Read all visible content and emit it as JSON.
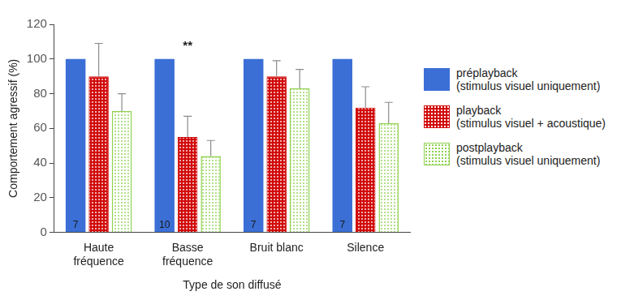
{
  "chart_data": {
    "type": "bar",
    "categories": [
      "Haute\nfréquence",
      "Basse\nfréquence",
      "Bruit blanc",
      "Silence"
    ],
    "x_label": "Type de son diffusé",
    "y_label": "Comportement agressif (%)",
    "ylim": [
      0,
      120
    ],
    "yticks": [
      0,
      20,
      40,
      60,
      80,
      100,
      120
    ],
    "grid": false,
    "legend": "right",
    "series": [
      {
        "name": "préplayback\n(stimulus visuel uniquement)",
        "color": "#3b6fd6",
        "values": [
          100,
          100,
          100,
          100
        ],
        "sample_sizes": [
          7,
          10,
          7,
          7
        ]
      },
      {
        "name": "playback\n(stimulus visuel + acoustique)",
        "color": "#d10a0a",
        "values": [
          90,
          55,
          90,
          72
        ],
        "errors": [
          19,
          12,
          9,
          12
        ]
      },
      {
        "name": "postplayback\n(stimulus visuel uniquement)",
        "color": "#8fd14f",
        "values": [
          70,
          44,
          83,
          63
        ],
        "errors": [
          10,
          9,
          11,
          12
        ]
      }
    ],
    "annotations": [
      {
        "category": "Basse\nfréquence",
        "text": "**"
      }
    ]
  }
}
